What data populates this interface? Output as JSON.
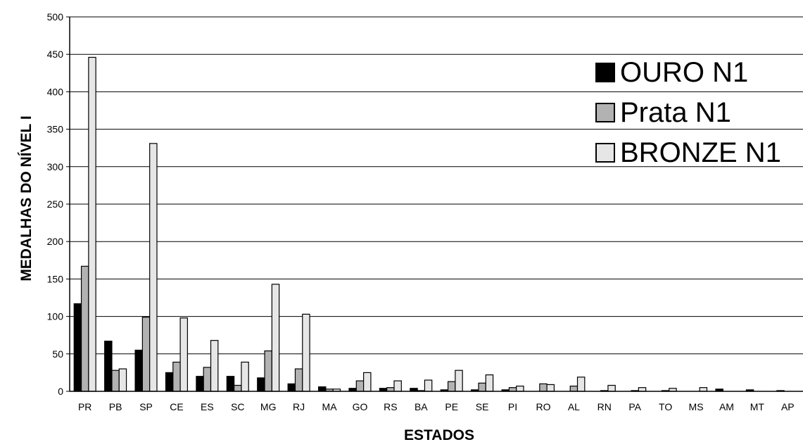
{
  "chart_data": {
    "type": "bar",
    "xlabel": "ESTADOS",
    "ylabel": "MEDALHAS DO NÍVEL I",
    "ylim": [
      0,
      500
    ],
    "yticks": [
      "0",
      "50",
      "100",
      "150",
      "200",
      "250",
      "300",
      "350",
      "400",
      "450",
      "500"
    ],
    "grid": true,
    "legend_position": "top-right",
    "categories": [
      "PR",
      "PB",
      "SP",
      "CE",
      "ES",
      "SC",
      "MG",
      "RJ",
      "MA",
      "GO",
      "RS",
      "BA",
      "PE",
      "SE",
      "PI",
      "RO",
      "AL",
      "RN",
      "PA",
      "TO",
      "MS",
      "AM",
      "MT",
      "AP"
    ],
    "series": [
      {
        "name": "OURO N1",
        "color": "#000000",
        "values": [
          117,
          67,
          55,
          25,
          20,
          20,
          18,
          10,
          6,
          4,
          4,
          4,
          2,
          2,
          2,
          0,
          0,
          0,
          0,
          0,
          0,
          3,
          2,
          1
        ]
      },
      {
        "name": "Prata N1",
        "color": "#b2b2b2",
        "values": [
          167,
          28,
          99,
          39,
          32,
          8,
          54,
          30,
          3,
          14,
          5,
          1,
          13,
          11,
          5,
          10,
          7,
          1,
          1,
          1,
          0,
          0,
          0,
          0
        ]
      },
      {
        "name": "BRONZE N1",
        "color": "#e6e6e6",
        "values": [
          446,
          30,
          331,
          98,
          68,
          39,
          143,
          103,
          3,
          25,
          14,
          15,
          28,
          22,
          7,
          9,
          19,
          8,
          5,
          4,
          5,
          0,
          0,
          0
        ]
      }
    ]
  }
}
